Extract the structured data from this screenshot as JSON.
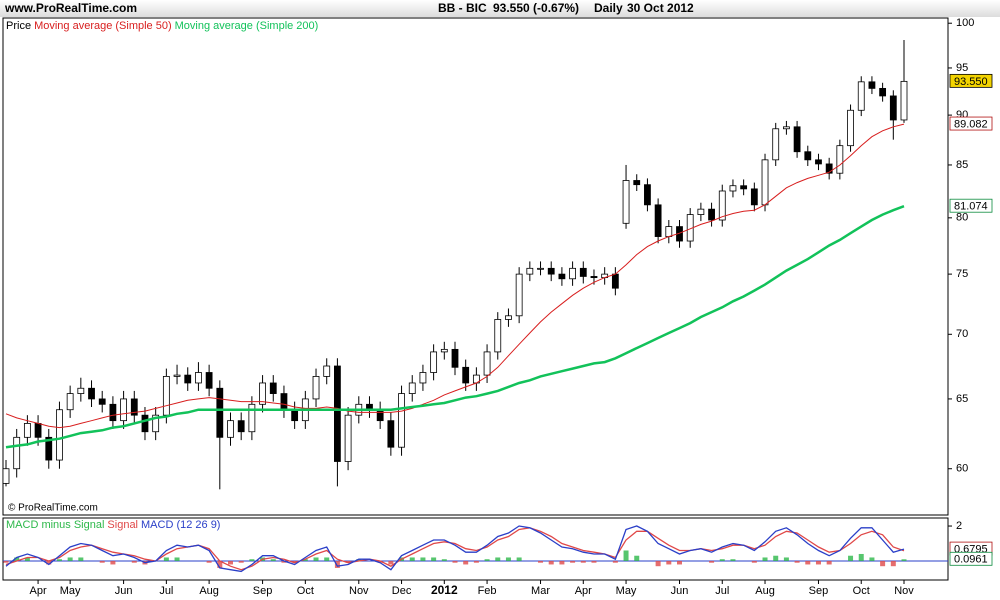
{
  "header": {
    "site": "www.ProRealTime.com",
    "symbol": "BB - BIC",
    "quote": "93.550 (-0.67%)",
    "period": "Daily",
    "date": "30 Oct 2012",
    "watermark": "© ProRealTime.com"
  },
  "chart_data": [
    {
      "type": "candlestick",
      "legend_label": "Price",
      "log_scale": true,
      "ylim": [
        56.9,
        100.6
      ],
      "yticks": [
        60,
        65,
        70,
        75,
        80,
        85,
        90,
        95,
        100
      ],
      "open": [
        59.0,
        60.0,
        62.2,
        63.2,
        62.2,
        60.6,
        64.2,
        65.4,
        65.8,
        65.0,
        64.6,
        63.4,
        65.0,
        63.8,
        62.6,
        63.8,
        66.7,
        66.8,
        66.2,
        67.0,
        65.8,
        62.2,
        63.4,
        62.6,
        64.6,
        66.2,
        65.4,
        64.2,
        63.4,
        65.0,
        66.7,
        67.5,
        60.5,
        63.8,
        64.6,
        64.2,
        63.4,
        61.5,
        65.4,
        66.2,
        67.0,
        68.6,
        68.8,
        67.4,
        66.2,
        66.8,
        68.6,
        71.2,
        71.5,
        75.0,
        75.5,
        75.5,
        75.0,
        74.6,
        75.5,
        74.8,
        74.7,
        75.0,
        79.5,
        83.5,
        83.1,
        81.2,
        78.3,
        79.2,
        77.9,
        80.3,
        80.8,
        79.8,
        82.5,
        83.0,
        82.7,
        81.2,
        85.5,
        88.6,
        88.8,
        86.3,
        85.5,
        85.1,
        84.2,
        86.9,
        90.5,
        93.5,
        92.8,
        92.0,
        89.5
      ],
      "high": [
        60.6,
        62.8,
        63.8,
        63.8,
        62.8,
        64.8,
        66.0,
        66.6,
        66.4,
        65.6,
        65.2,
        65.6,
        65.6,
        64.4,
        64.4,
        67.3,
        67.6,
        67.4,
        67.8,
        67.6,
        66.4,
        64.0,
        64.0,
        65.2,
        66.8,
        66.8,
        66.0,
        64.8,
        65.6,
        67.3,
        68.1,
        68.1,
        64.4,
        65.2,
        65.2,
        64.8,
        64.0,
        66.0,
        66.8,
        67.6,
        69.2,
        69.4,
        69.4,
        68.0,
        67.4,
        69.2,
        71.8,
        72.1,
        75.6,
        76.1,
        76.1,
        76.1,
        75.6,
        76.1,
        76.1,
        75.4,
        75.6,
        75.6,
        85.0,
        84.1,
        83.7,
        81.8,
        79.8,
        79.8,
        80.9,
        81.4,
        81.4,
        83.1,
        83.6,
        83.6,
        83.3,
        86.1,
        89.2,
        89.4,
        89.4,
        86.9,
        86.1,
        85.7,
        87.5,
        91.1,
        94.1,
        94.1,
        93.4,
        92.6,
        98.1
      ],
      "low": [
        58.8,
        59.4,
        61.6,
        61.6,
        60.0,
        60.0,
        63.6,
        64.8,
        64.4,
        64.0,
        62.8,
        62.8,
        63.2,
        62.0,
        62.0,
        63.2,
        66.1,
        65.6,
        65.6,
        65.2,
        58.6,
        61.6,
        62.0,
        62.0,
        64.0,
        64.8,
        63.6,
        62.8,
        62.8,
        64.4,
        66.1,
        58.8,
        59.9,
        63.2,
        63.6,
        62.8,
        60.9,
        60.9,
        64.8,
        65.6,
        66.4,
        68.0,
        66.8,
        65.6,
        65.6,
        66.2,
        68.0,
        70.6,
        70.9,
        74.4,
        74.9,
        74.4,
        74.0,
        74.0,
        74.2,
        74.1,
        74.1,
        73.2,
        79.0,
        82.5,
        80.6,
        77.7,
        77.7,
        77.3,
        77.3,
        79.7,
        79.2,
        79.2,
        81.9,
        82.1,
        80.6,
        80.6,
        84.9,
        88.0,
        85.7,
        84.9,
        84.5,
        83.6,
        83.6,
        86.3,
        89.9,
        92.2,
        91.4,
        87.5,
        89.2
      ],
      "close": [
        60.0,
        62.2,
        63.2,
        62.2,
        60.6,
        64.2,
        65.4,
        65.8,
        65.0,
        64.6,
        63.4,
        65.0,
        63.8,
        62.6,
        63.8,
        66.7,
        66.8,
        66.2,
        67.0,
        65.8,
        62.2,
        63.4,
        62.6,
        64.6,
        66.2,
        65.4,
        64.2,
        63.4,
        65.0,
        66.7,
        67.5,
        60.5,
        63.8,
        64.6,
        64.2,
        63.4,
        61.5,
        65.4,
        66.2,
        67.0,
        68.6,
        68.8,
        67.4,
        66.2,
        66.8,
        68.6,
        71.2,
        71.5,
        75.0,
        75.5,
        75.5,
        75.0,
        74.6,
        75.5,
        74.8,
        74.7,
        75.0,
        73.8,
        83.5,
        83.1,
        81.2,
        78.3,
        79.2,
        77.9,
        80.3,
        80.8,
        79.8,
        82.5,
        83.0,
        82.7,
        81.2,
        85.5,
        88.6,
        88.8,
        86.3,
        85.5,
        85.1,
        84.2,
        86.9,
        90.5,
        93.5,
        92.8,
        92.0,
        89.5,
        93.55
      ],
      "series": [
        {
          "name": "Moving average (Simple 50)",
          "color": "#d81e1e",
          "width": 1,
          "values": [
            63.9,
            63.6,
            63.4,
            63.2,
            63.0,
            62.9,
            63.0,
            63.2,
            63.4,
            63.6,
            63.8,
            63.9,
            64.0,
            64.1,
            64.3,
            64.5,
            64.7,
            64.9,
            65.0,
            65.1,
            65.0,
            64.9,
            64.8,
            64.8,
            64.8,
            64.7,
            64.6,
            64.4,
            64.3,
            64.3,
            64.4,
            64.3,
            64.1,
            64.0,
            64.0,
            64.0,
            64.0,
            64.1,
            64.3,
            64.6,
            64.9,
            65.3,
            65.6,
            65.9,
            66.2,
            66.7,
            67.4,
            68.3,
            69.2,
            70.1,
            71.0,
            71.8,
            72.5,
            73.2,
            73.8,
            74.3,
            74.7,
            75.0,
            75.8,
            76.7,
            77.4,
            77.9,
            78.3,
            78.6,
            79.0,
            79.4,
            79.7,
            80.1,
            80.4,
            80.6,
            80.7,
            81.2,
            82.0,
            82.8,
            83.3,
            83.7,
            84.0,
            84.3,
            85.0,
            85.9,
            86.9,
            87.8,
            88.4,
            88.8,
            89.08
          ]
        },
        {
          "name": "Moving average (Simple 200)",
          "color": "#12c25a",
          "width": 2.5,
          "values": [
            61.5,
            61.6,
            61.7,
            61.9,
            62.0,
            62.1,
            62.3,
            62.5,
            62.6,
            62.7,
            62.9,
            63.0,
            63.2,
            63.4,
            63.6,
            63.7,
            63.9,
            64.0,
            64.2,
            64.2,
            64.2,
            64.2,
            64.2,
            64.2,
            64.2,
            64.2,
            64.2,
            64.2,
            64.2,
            64.2,
            64.2,
            64.2,
            64.2,
            64.2,
            64.2,
            64.2,
            64.2,
            64.3,
            64.4,
            64.5,
            64.6,
            64.7,
            64.9,
            65.1,
            65.2,
            65.4,
            65.6,
            65.9,
            66.2,
            66.4,
            66.7,
            66.9,
            67.1,
            67.3,
            67.5,
            67.7,
            67.8,
            68.1,
            68.5,
            68.9,
            69.3,
            69.7,
            70.1,
            70.5,
            70.9,
            71.4,
            71.8,
            72.2,
            72.7,
            73.1,
            73.6,
            74.1,
            74.7,
            75.3,
            75.8,
            76.3,
            76.9,
            77.5,
            78.0,
            78.6,
            79.2,
            79.8,
            80.3,
            80.7,
            81.07
          ]
        }
      ],
      "price_tags": [
        {
          "value": 93.55,
          "label": "93.550",
          "color": "#000000",
          "fill": "#f2d300"
        },
        {
          "value": 89.082,
          "label": "89.082",
          "color": "#b01010",
          "fill": "#ffffff"
        },
        {
          "value": 81.074,
          "label": "81.074",
          "color": "#0a8a3c",
          "fill": "#ffffff"
        }
      ]
    },
    {
      "type": "macd",
      "ylim": [
        -1.09,
        2.46
      ],
      "yticks": [
        2
      ],
      "categories": [
        null,
        null,
        null,
        "Apr",
        null,
        null,
        "May",
        null,
        null,
        null,
        null,
        "Jun",
        null,
        null,
        null,
        "Jul",
        null,
        null,
        null,
        "Aug",
        null,
        null,
        null,
        null,
        "Sep",
        null,
        null,
        null,
        "Oct",
        null,
        null,
        null,
        null,
        "Nov",
        null,
        null,
        null,
        "Dec",
        null,
        null,
        null,
        "2012",
        null,
        null,
        null,
        "Feb",
        null,
        null,
        null,
        null,
        "Mar",
        null,
        null,
        null,
        "Apr",
        null,
        null,
        null,
        "May",
        null,
        null,
        null,
        null,
        "Jun",
        null,
        null,
        null,
        "Jul",
        null,
        null,
        null,
        "Aug",
        null,
        null,
        null,
        null,
        "Sep",
        null,
        null,
        null,
        "Oct",
        null,
        null,
        null,
        "Nov"
      ],
      "series": [
        {
          "name": "MACD minus Signal",
          "color": "#2db84a",
          "negative_color": "#e04848",
          "kind": "histogram",
          "values": [
            -0.1,
            0.2,
            0.2,
            0.0,
            -0.2,
            0.1,
            0.2,
            0.2,
            0.0,
            -0.1,
            -0.2,
            0.0,
            -0.1,
            -0.2,
            0.0,
            0.2,
            0.2,
            0.0,
            0.0,
            -0.1,
            -0.4,
            -0.2,
            -0.1,
            0.1,
            0.2,
            0.1,
            -0.1,
            -0.1,
            0.1,
            0.2,
            0.2,
            -0.4,
            -0.1,
            0.1,
            0.0,
            -0.1,
            -0.2,
            0.2,
            0.2,
            0.2,
            0.2,
            0.1,
            -0.1,
            -0.2,
            -0.1,
            0.1,
            0.2,
            0.2,
            0.2,
            0.0,
            -0.1,
            -0.2,
            -0.2,
            -0.1,
            -0.1,
            -0.1,
            0.0,
            -0.1,
            0.6,
            0.3,
            0.0,
            -0.3,
            -0.2,
            -0.2,
            0.0,
            0.0,
            -0.1,
            0.1,
            0.1,
            0.0,
            -0.1,
            0.2,
            0.3,
            0.2,
            -0.1,
            -0.2,
            -0.2,
            -0.2,
            0.0,
            0.3,
            0.4,
            0.2,
            -0.3,
            -0.3,
            0.0961
          ]
        },
        {
          "name": "Signal",
          "color": "#e04848",
          "kind": "line",
          "values": [
            -0.2,
            0.0,
            0.2,
            0.2,
            0.0,
            0.2,
            0.6,
            0.8,
            0.9,
            0.7,
            0.5,
            0.4,
            0.3,
            0.1,
            0.0,
            0.4,
            0.7,
            0.8,
            0.9,
            0.7,
            0.0,
            -0.3,
            -0.5,
            -0.3,
            0.1,
            0.2,
            0.1,
            -0.1,
            0.1,
            0.4,
            0.6,
            0.1,
            -0.1,
            0.0,
            0.1,
            0.0,
            -0.3,
            0.1,
            0.4,
            0.7,
            1.0,
            1.1,
            1.0,
            0.7,
            0.6,
            0.8,
            1.2,
            1.4,
            1.8,
            1.9,
            1.7,
            1.4,
            1.0,
            0.8,
            0.6,
            0.5,
            0.4,
            0.2,
            1.2,
            1.7,
            1.7,
            1.3,
            0.9,
            0.6,
            0.6,
            0.7,
            0.6,
            0.7,
            0.9,
            0.9,
            0.7,
            0.9,
            1.4,
            1.7,
            1.6,
            1.2,
            0.8,
            0.5,
            0.6,
            1.0,
            1.5,
            1.7,
            1.5,
            0.8,
            0.5834
          ]
        },
        {
          "name": "MACD (12 26 9)",
          "color": "#2a3fc8",
          "kind": "line",
          "values": [
            -0.3,
            0.2,
            0.4,
            0.2,
            -0.2,
            0.3,
            0.8,
            1.0,
            0.9,
            0.6,
            0.3,
            0.4,
            0.2,
            -0.1,
            0.0,
            0.6,
            0.9,
            0.8,
            0.9,
            0.6,
            -0.4,
            -0.5,
            -0.6,
            -0.2,
            0.3,
            0.3,
            0.0,
            -0.2,
            0.2,
            0.6,
            0.8,
            -0.3,
            -0.2,
            0.1,
            0.1,
            -0.1,
            -0.5,
            0.3,
            0.6,
            0.9,
            1.2,
            1.2,
            0.9,
            0.5,
            0.5,
            0.9,
            1.4,
            1.6,
            2.0,
            1.9,
            1.6,
            1.2,
            0.8,
            0.7,
            0.5,
            0.4,
            0.4,
            0.1,
            1.8,
            2.0,
            1.7,
            1.0,
            0.7,
            0.4,
            0.6,
            0.7,
            0.5,
            0.8,
            1.0,
            0.9,
            0.6,
            1.1,
            1.7,
            1.9,
            1.5,
            1.0,
            0.6,
            0.3,
            0.6,
            1.3,
            1.9,
            1.9,
            1.2,
            0.5,
            0.6795
          ]
        }
      ],
      "price_tags": [
        {
          "value": 0.6795,
          "label": "0.6795",
          "color": "#b01010",
          "fill": "#ffffff"
        },
        {
          "value": 0.0961,
          "label": "0.0961",
          "color": "#0a8a3c",
          "fill": "#ffffff"
        }
      ]
    }
  ]
}
